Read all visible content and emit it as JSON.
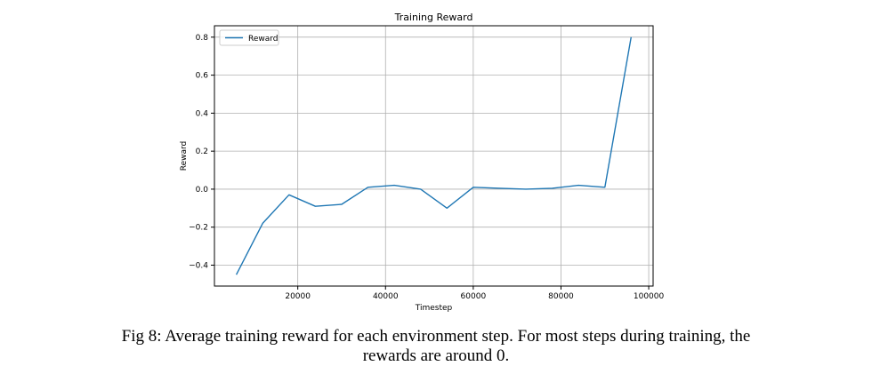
{
  "chart_data": {
    "type": "line",
    "title": "Training Reward",
    "xlabel": "Timestep",
    "ylabel": "Reward",
    "xlim": [
      1000,
      101000
    ],
    "ylim": [
      -0.51,
      0.86
    ],
    "x_ticks": [
      20000,
      40000,
      60000,
      80000,
      100000
    ],
    "x_tick_labels": [
      "20000",
      "40000",
      "60000",
      "80000",
      "100000"
    ],
    "y_ticks": [
      -0.4,
      -0.2,
      0.0,
      0.2,
      0.4,
      0.6,
      0.8
    ],
    "y_tick_labels": [
      "−0.4",
      "−0.2",
      "0.0",
      "0.2",
      "0.4",
      "0.6",
      "0.8"
    ],
    "grid": true,
    "legend": {
      "position": "top-left"
    },
    "series": [
      {
        "name": "Reward",
        "color": "#1f77b4",
        "x": [
          6000,
          12000,
          18000,
          24000,
          30000,
          36000,
          42000,
          48000,
          54000,
          60000,
          66000,
          72000,
          78000,
          84000,
          90000,
          96000
        ],
        "y": [
          -0.45,
          -0.18,
          -0.03,
          -0.09,
          -0.08,
          0.01,
          0.02,
          0.0,
          -0.1,
          0.01,
          0.005,
          0.0,
          0.005,
          0.02,
          0.01,
          0.8
        ]
      }
    ]
  },
  "caption": {
    "line1": "Fig 8: Average training reward for each environment step. For most steps during training, the",
    "line2": "rewards are around 0."
  }
}
